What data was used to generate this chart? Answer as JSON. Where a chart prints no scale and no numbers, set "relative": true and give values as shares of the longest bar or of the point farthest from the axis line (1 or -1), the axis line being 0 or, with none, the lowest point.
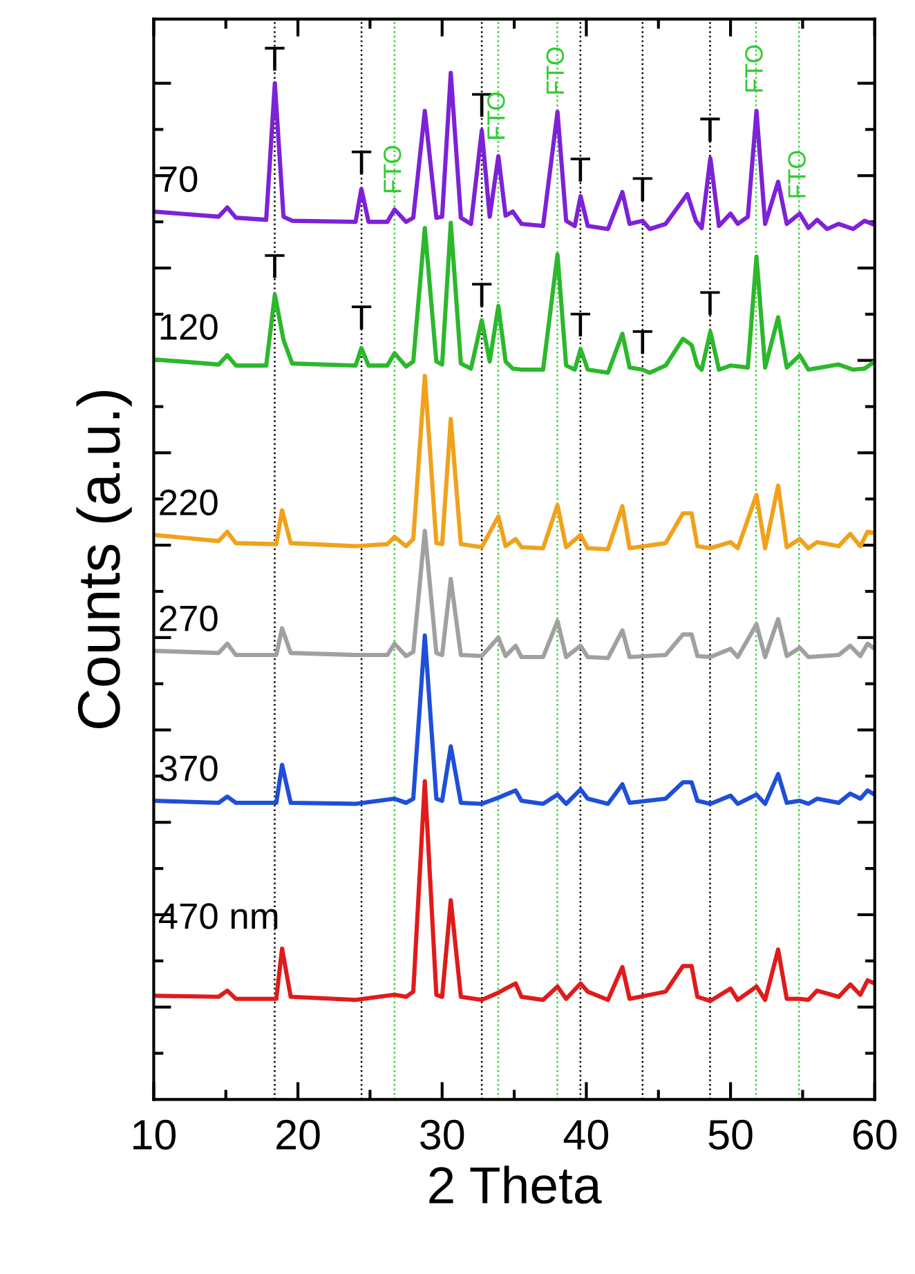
{
  "chart_data": {
    "type": "line",
    "relative": true,
    "xlabel": "2 Theta",
    "ylabel": "Counts (a.u.)",
    "xlim": [
      10,
      60
    ],
    "xticks": [
      10,
      20,
      30,
      40,
      50,
      60
    ],
    "tick_labels": "x",
    "series": [
      {
        "name": "70",
        "color": "#7d22d6",
        "x": [
          10.0,
          14.5,
          15.1,
          15.7,
          17.8,
          18.4,
          19.0,
          19.6,
          24.0,
          24.4,
          24.9,
          26.2,
          26.7,
          27.5,
          28.0,
          28.8,
          29.6,
          30.0,
          30.6,
          31.3,
          32.0,
          32.75,
          33.3,
          33.9,
          34.4,
          34.9,
          35.5,
          37.0,
          38.0,
          38.6,
          39.2,
          39.6,
          40.1,
          41.5,
          42.5,
          43.0,
          43.9,
          44.4,
          45.5,
          47.0,
          47.6,
          48.0,
          48.6,
          49.2,
          50.0,
          50.5,
          51.2,
          51.8,
          52.4,
          53.3,
          53.9,
          54.8,
          55.4,
          56.0,
          56.7,
          57.5,
          58.5,
          59.3,
          60.0
        ],
        "values": [
          0.865,
          0.86,
          0.869,
          0.859,
          0.857,
          0.99,
          0.86,
          0.856,
          0.855,
          0.887,
          0.855,
          0.855,
          0.867,
          0.855,
          0.859,
          0.963,
          0.859,
          0.86,
          1.0,
          0.859,
          0.853,
          0.944,
          0.86,
          0.919,
          0.861,
          0.865,
          0.853,
          0.851,
          0.962,
          0.856,
          0.851,
          0.88,
          0.851,
          0.848,
          0.884,
          0.853,
          0.856,
          0.848,
          0.853,
          0.882,
          0.856,
          0.849,
          0.917,
          0.851,
          0.863,
          0.853,
          0.86,
          0.963,
          0.853,
          0.894,
          0.853,
          0.863,
          0.849,
          0.857,
          0.848,
          0.853,
          0.848,
          0.856,
          0.852
        ]
      },
      {
        "name": "120",
        "color": "#2cb82c",
        "x": [
          10.0,
          14.5,
          15.1,
          15.7,
          17.8,
          18.4,
          19.0,
          19.6,
          24.0,
          24.4,
          24.9,
          26.2,
          26.7,
          27.5,
          28.0,
          28.8,
          29.6,
          30.0,
          30.6,
          31.3,
          32.0,
          32.75,
          33.3,
          33.9,
          34.4,
          34.9,
          35.5,
          37.0,
          38.0,
          38.6,
          39.2,
          39.6,
          40.1,
          41.5,
          42.5,
          43.0,
          43.9,
          44.4,
          45.5,
          46.7,
          47.3,
          47.7,
          48.0,
          48.6,
          49.2,
          50.0,
          51.2,
          51.8,
          52.4,
          53.3,
          53.9,
          54.8,
          55.4,
          57.5,
          58.5,
          59.3,
          60.0
        ],
        "values": [
          0.721,
          0.716,
          0.725,
          0.715,
          0.715,
          0.784,
          0.74,
          0.717,
          0.715,
          0.732,
          0.715,
          0.715,
          0.727,
          0.714,
          0.719,
          0.849,
          0.719,
          0.716,
          0.854,
          0.717,
          0.712,
          0.759,
          0.719,
          0.773,
          0.719,
          0.712,
          0.711,
          0.711,
          0.823,
          0.715,
          0.711,
          0.731,
          0.711,
          0.708,
          0.746,
          0.713,
          0.711,
          0.708,
          0.715,
          0.741,
          0.735,
          0.715,
          0.711,
          0.748,
          0.711,
          0.715,
          0.713,
          0.821,
          0.713,
          0.762,
          0.713,
          0.725,
          0.711,
          0.716,
          0.711,
          0.712,
          0.719
        ]
      },
      {
        "name": "220",
        "color": "#f0a21c",
        "x": [
          10.0,
          14.5,
          15.1,
          15.7,
          18.5,
          18.9,
          19.5,
          24.0,
          26.2,
          26.7,
          27.5,
          28.0,
          28.8,
          29.6,
          30.0,
          30.6,
          31.3,
          32.75,
          33.9,
          34.4,
          35.1,
          35.5,
          37.0,
          38.0,
          38.6,
          39.6,
          40.1,
          41.5,
          42.5,
          43.0,
          45.5,
          46.7,
          47.3,
          47.7,
          48.6,
          50.0,
          50.5,
          51.8,
          52.4,
          53.3,
          53.9,
          54.8,
          55.4,
          56.0,
          57.5,
          58.3,
          59.0,
          59.5,
          60.0
        ],
        "values": [
          0.55,
          0.544,
          0.553,
          0.542,
          0.541,
          0.574,
          0.542,
          0.539,
          0.541,
          0.548,
          0.539,
          0.546,
          0.705,
          0.542,
          0.541,
          0.663,
          0.541,
          0.538,
          0.568,
          0.539,
          0.546,
          0.538,
          0.537,
          0.579,
          0.538,
          0.55,
          0.537,
          0.536,
          0.578,
          0.537,
          0.542,
          0.571,
          0.571,
          0.539,
          0.537,
          0.543,
          0.537,
          0.589,
          0.537,
          0.598,
          0.538,
          0.546,
          0.537,
          0.543,
          0.539,
          0.551,
          0.539,
          0.553,
          0.552
        ]
      },
      {
        "name": "270",
        "color": "#a0a0a0",
        "x": [
          10.0,
          14.5,
          15.1,
          15.7,
          18.5,
          18.9,
          19.5,
          24.0,
          26.2,
          26.7,
          27.5,
          28.0,
          28.8,
          29.6,
          30.0,
          30.6,
          31.3,
          32.75,
          33.9,
          34.4,
          35.1,
          35.5,
          37.0,
          38.0,
          38.6,
          39.6,
          40.1,
          41.5,
          42.5,
          43.0,
          45.5,
          46.7,
          47.3,
          47.7,
          48.6,
          50.0,
          50.5,
          51.8,
          52.4,
          53.3,
          53.9,
          54.8,
          55.4,
          57.5,
          58.3,
          59.0,
          59.5,
          60.0
        ],
        "values": [
          0.437,
          0.435,
          0.444,
          0.433,
          0.433,
          0.459,
          0.435,
          0.433,
          0.433,
          0.444,
          0.432,
          0.436,
          0.554,
          0.435,
          0.433,
          0.507,
          0.433,
          0.432,
          0.45,
          0.432,
          0.442,
          0.431,
          0.431,
          0.466,
          0.431,
          0.442,
          0.431,
          0.43,
          0.457,
          0.431,
          0.433,
          0.453,
          0.453,
          0.432,
          0.431,
          0.439,
          0.431,
          0.463,
          0.431,
          0.468,
          0.432,
          0.44,
          0.431,
          0.433,
          0.442,
          0.432,
          0.444,
          0.439
        ]
      },
      {
        "name": "370",
        "color": "#1f4fd8",
        "x": [
          10.0,
          14.5,
          15.1,
          15.7,
          18.5,
          18.9,
          19.5,
          24.0,
          26.7,
          27.5,
          28.0,
          28.8,
          29.6,
          30.0,
          30.6,
          31.3,
          32.75,
          33.9,
          34.4,
          35.1,
          35.5,
          37.0,
          38.0,
          38.6,
          39.6,
          40.1,
          41.5,
          42.5,
          43.0,
          45.5,
          46.7,
          47.3,
          47.7,
          48.6,
          50.0,
          50.5,
          51.8,
          52.4,
          53.3,
          53.9,
          54.8,
          55.4,
          56.0,
          57.5,
          58.3,
          59.0,
          59.5,
          60.0
        ],
        "values": [
          0.291,
          0.289,
          0.295,
          0.289,
          0.289,
          0.326,
          0.289,
          0.288,
          0.293,
          0.289,
          0.293,
          0.452,
          0.293,
          0.291,
          0.344,
          0.289,
          0.288,
          0.294,
          0.297,
          0.301,
          0.291,
          0.288,
          0.297,
          0.288,
          0.302,
          0.293,
          0.288,
          0.307,
          0.289,
          0.293,
          0.309,
          0.309,
          0.291,
          0.288,
          0.296,
          0.288,
          0.297,
          0.288,
          0.317,
          0.289,
          0.291,
          0.288,
          0.293,
          0.289,
          0.298,
          0.293,
          0.301,
          0.297
        ]
      },
      {
        "name": "470 nm",
        "color": "#e01b1b",
        "x": [
          10.0,
          14.5,
          15.1,
          15.7,
          18.5,
          18.9,
          19.5,
          24.0,
          26.7,
          27.5,
          28.0,
          28.8,
          29.6,
          30.0,
          30.6,
          31.3,
          32.75,
          33.9,
          34.4,
          35.1,
          35.5,
          37.0,
          38.0,
          38.6,
          39.6,
          40.1,
          41.5,
          42.5,
          43.0,
          45.5,
          46.7,
          47.3,
          47.7,
          48.6,
          50.0,
          50.5,
          51.8,
          52.4,
          53.3,
          53.9,
          54.8,
          55.4,
          56.0,
          57.5,
          58.3,
          59.0,
          59.5,
          60.0
        ],
        "values": [
          0.101,
          0.1,
          0.106,
          0.098,
          0.098,
          0.147,
          0.1,
          0.097,
          0.102,
          0.1,
          0.105,
          0.31,
          0.102,
          0.1,
          0.194,
          0.1,
          0.097,
          0.104,
          0.108,
          0.113,
          0.1,
          0.097,
          0.11,
          0.098,
          0.113,
          0.105,
          0.097,
          0.129,
          0.098,
          0.105,
          0.13,
          0.13,
          0.1,
          0.096,
          0.108,
          0.097,
          0.11,
          0.097,
          0.146,
          0.098,
          0.098,
          0.097,
          0.106,
          0.1,
          0.112,
          0.102,
          0.116,
          0.113
        ]
      }
    ],
    "ref_lines": [
      {
        "axis": "x",
        "value": 18.39,
        "color": "#000000",
        "line_style": "dotted"
      },
      {
        "axis": "x",
        "value": 24.41,
        "color": "#000000",
        "line_style": "dotted"
      },
      {
        "axis": "x",
        "value": 32.75,
        "color": "#000000",
        "line_style": "dotted"
      },
      {
        "axis": "x",
        "value": 39.59,
        "color": "#000000",
        "line_style": "dotted"
      },
      {
        "axis": "x",
        "value": 43.9,
        "color": "#000000",
        "line_style": "dotted"
      },
      {
        "axis": "x",
        "value": 48.58,
        "color": "#000000",
        "line_style": "dotted"
      },
      {
        "axis": "x",
        "value": 26.7,
        "color": "#33cc33",
        "line_style": "dotted"
      },
      {
        "axis": "x",
        "value": 33.89,
        "color": "#33cc33",
        "line_style": "dotted"
      },
      {
        "axis": "x",
        "value": 37.99,
        "color": "#33cc33",
        "line_style": "dotted"
      },
      {
        "axis": "x",
        "value": 51.77,
        "color": "#33cc33",
        "line_style": "dotted"
      },
      {
        "axis": "x",
        "value": 54.75,
        "color": "#33cc33",
        "line_style": "dotted"
      }
    ],
    "annotations": [
      {
        "text": "T",
        "x": 18.39,
        "y": 1.011
      },
      {
        "text": "T",
        "x": 24.41,
        "y": 0.91
      },
      {
        "text": "T",
        "x": 32.75,
        "y": 0.966
      },
      {
        "text": "T",
        "x": 39.59,
        "y": 0.903
      },
      {
        "text": "T",
        "x": 43.9,
        "y": 0.884
      },
      {
        "text": "T",
        "x": 48.58,
        "y": 0.942
      },
      {
        "text": "T",
        "x": 18.39,
        "y": 0.809
      },
      {
        "text": "T",
        "x": 24.41,
        "y": 0.759
      },
      {
        "text": "T",
        "x": 32.75,
        "y": 0.781
      },
      {
        "text": "T",
        "x": 39.59,
        "y": 0.752
      },
      {
        "text": "T",
        "x": 43.9,
        "y": 0.735
      },
      {
        "text": "T",
        "x": 48.58,
        "y": 0.773
      },
      {
        "text": "FTO",
        "x": 26.7,
        "y": 0.906
      },
      {
        "text": "FTO",
        "x": 33.89,
        "y": 0.958
      },
      {
        "text": "FTO",
        "x": 37.99,
        "y": 1.002
      },
      {
        "text": "FTO",
        "x": 51.77,
        "y": 1.004
      },
      {
        "text": "FTO",
        "x": 54.75,
        "y": 0.901
      }
    ]
  }
}
